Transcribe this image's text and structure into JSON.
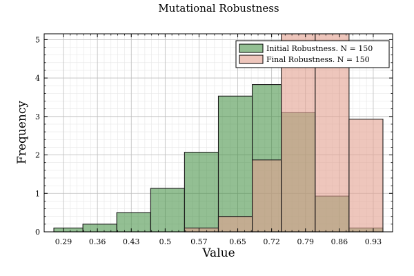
{
  "chart_data": {
    "type": "bar",
    "title": "Mutational Robustness",
    "xlabel": "Value",
    "ylabel": "Frequency",
    "xlim": [
      0.25,
      0.97
    ],
    "ylim": [
      0,
      5.15
    ],
    "xticks": [
      "0.29",
      "0.36",
      "0.43",
      "0.5",
      "0.57",
      "0.65",
      "0.72",
      "0.79",
      "0.86",
      "0.93"
    ],
    "yticks": [
      "0",
      "1",
      "2",
      "3",
      "4",
      "5"
    ],
    "grid": true,
    "legend_position": "top-right",
    "bin_edges": [
      0.27,
      0.33,
      0.4,
      0.47,
      0.54,
      0.61,
      0.68,
      0.74,
      0.81,
      0.88,
      0.95
    ],
    "series": [
      {
        "name": "Initial Robustness. N = 150",
        "color": "#3a8b3a",
        "values": [
          0.1,
          0.2,
          0.5,
          1.13,
          2.07,
          3.53,
          3.83,
          3.1,
          0.93,
          0.1
        ]
      },
      {
        "name": "Final Robustness. N = 150",
        "color": "#e3a08f",
        "values": [
          0,
          0,
          0,
          0,
          0.1,
          0.4,
          1.87,
          5.2,
          5.2,
          2.93
        ]
      }
    ]
  }
}
